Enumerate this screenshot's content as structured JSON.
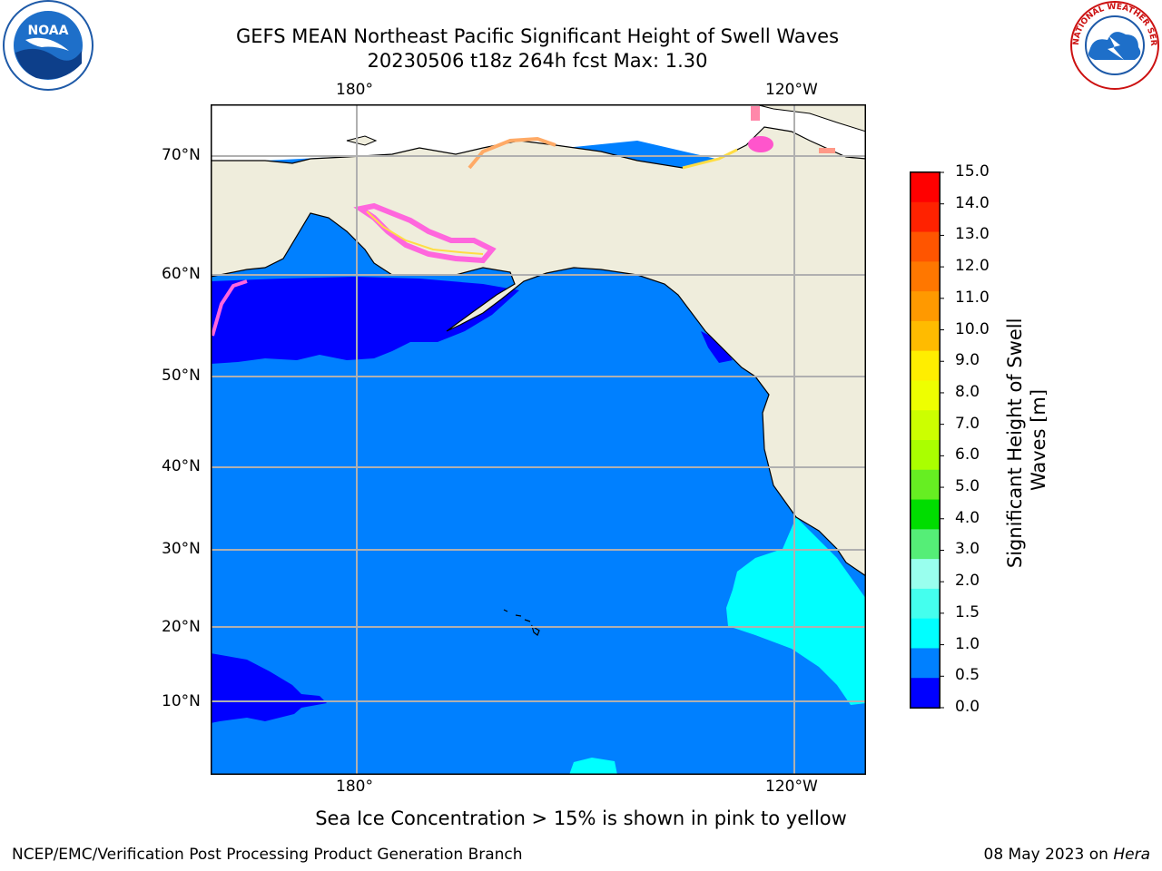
{
  "title": {
    "line1": "GEFS MEAN Northeast Pacific Significant Height of Swell Waves",
    "line2": "20230506 t18z 264h fcst   Max: 1.30"
  },
  "map": {
    "lon_labels_top": [
      "180°",
      "120°W"
    ],
    "lon_labels_bottom": [
      "180°",
      "120°W"
    ],
    "lat_labels": [
      "70°N",
      "60°N",
      "50°N",
      "40°N",
      "30°N",
      "20°N",
      "10°N"
    ],
    "colors": {
      "land": "#efeddc",
      "ocean_0_5_1_0": "#0080ff",
      "ocean_0_0_5": "#0000ff",
      "ocean_1_0_1_5": "#00ffff",
      "sea_ice_edge": "#ff66dd",
      "grid": "#b0b0b0"
    }
  },
  "colorbar": {
    "label": "Significant Height of Swell Waves [m]",
    "ticks": [
      "15.0",
      "14.0",
      "13.0",
      "12.0",
      "11.0",
      "10.0",
      "9.0",
      "8.0",
      "7.0",
      "6.0",
      "5.0",
      "4.0",
      "3.0",
      "2.0",
      "1.5",
      "1.0",
      "0.5",
      "0.0"
    ],
    "segment_colors": [
      "#ff0000",
      "#ff2200",
      "#ff5500",
      "#ff7700",
      "#ff9900",
      "#ffbb00",
      "#ffee00",
      "#eeff00",
      "#ccff00",
      "#aaff00",
      "#66ee22",
      "#00dd00",
      "#55ee77",
      "#99ffee",
      "#44ffee",
      "#00ffff",
      "#0080ff",
      "#0000ff"
    ]
  },
  "logos": {
    "noaa": "NOAA",
    "nws": "NATIONAL WEATHER SERVICE"
  },
  "note": "Sea Ice Concentration > 15% is shown in pink to yellow",
  "footer": {
    "credit": "NCEP/EMC/Verification Post Processing Product Generation Branch",
    "date": "08 May 2023 on",
    "host": "Hera"
  }
}
